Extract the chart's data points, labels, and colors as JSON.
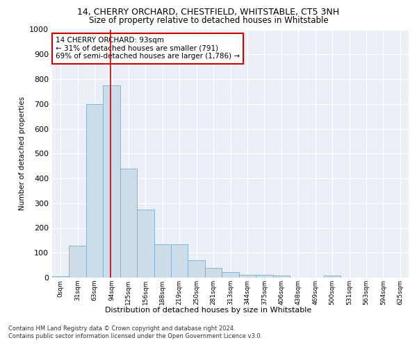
{
  "title1": "14, CHERRY ORCHARD, CHESTFIELD, WHITSTABLE, CT5 3NH",
  "title2": "Size of property relative to detached houses in Whitstable",
  "xlabel": "Distribution of detached houses by size in Whitstable",
  "ylabel": "Number of detached properties",
  "bin_labels": [
    "0sqm",
    "31sqm",
    "63sqm",
    "94sqm",
    "125sqm",
    "156sqm",
    "188sqm",
    "219sqm",
    "250sqm",
    "281sqm",
    "313sqm",
    "344sqm",
    "375sqm",
    "406sqm",
    "438sqm",
    "469sqm",
    "500sqm",
    "531sqm",
    "563sqm",
    "594sqm",
    "625sqm"
  ],
  "bar_values": [
    5,
    128,
    700,
    775,
    440,
    275,
    135,
    135,
    70,
    38,
    22,
    12,
    12,
    8,
    0,
    0,
    8,
    0,
    0,
    0,
    0
  ],
  "bar_color": "#ccdce8",
  "bar_edge_color": "#7aafc8",
  "property_line_color": "#cc0000",
  "annotation_text": "14 CHERRY ORCHARD: 93sqm\n← 31% of detached houses are smaller (791)\n69% of semi-detached houses are larger (1,786) →",
  "annotation_box_color": "#ffffff",
  "annotation_box_edge_color": "#cc0000",
  "ylim": [
    0,
    1000
  ],
  "yticks": [
    0,
    100,
    200,
    300,
    400,
    500,
    600,
    700,
    800,
    900,
    1000
  ],
  "footer1": "Contains HM Land Registry data © Crown copyright and database right 2024.",
  "footer2": "Contains public sector information licensed under the Open Government Licence v3.0.",
  "plot_bg_color": "#eaf0f6"
}
